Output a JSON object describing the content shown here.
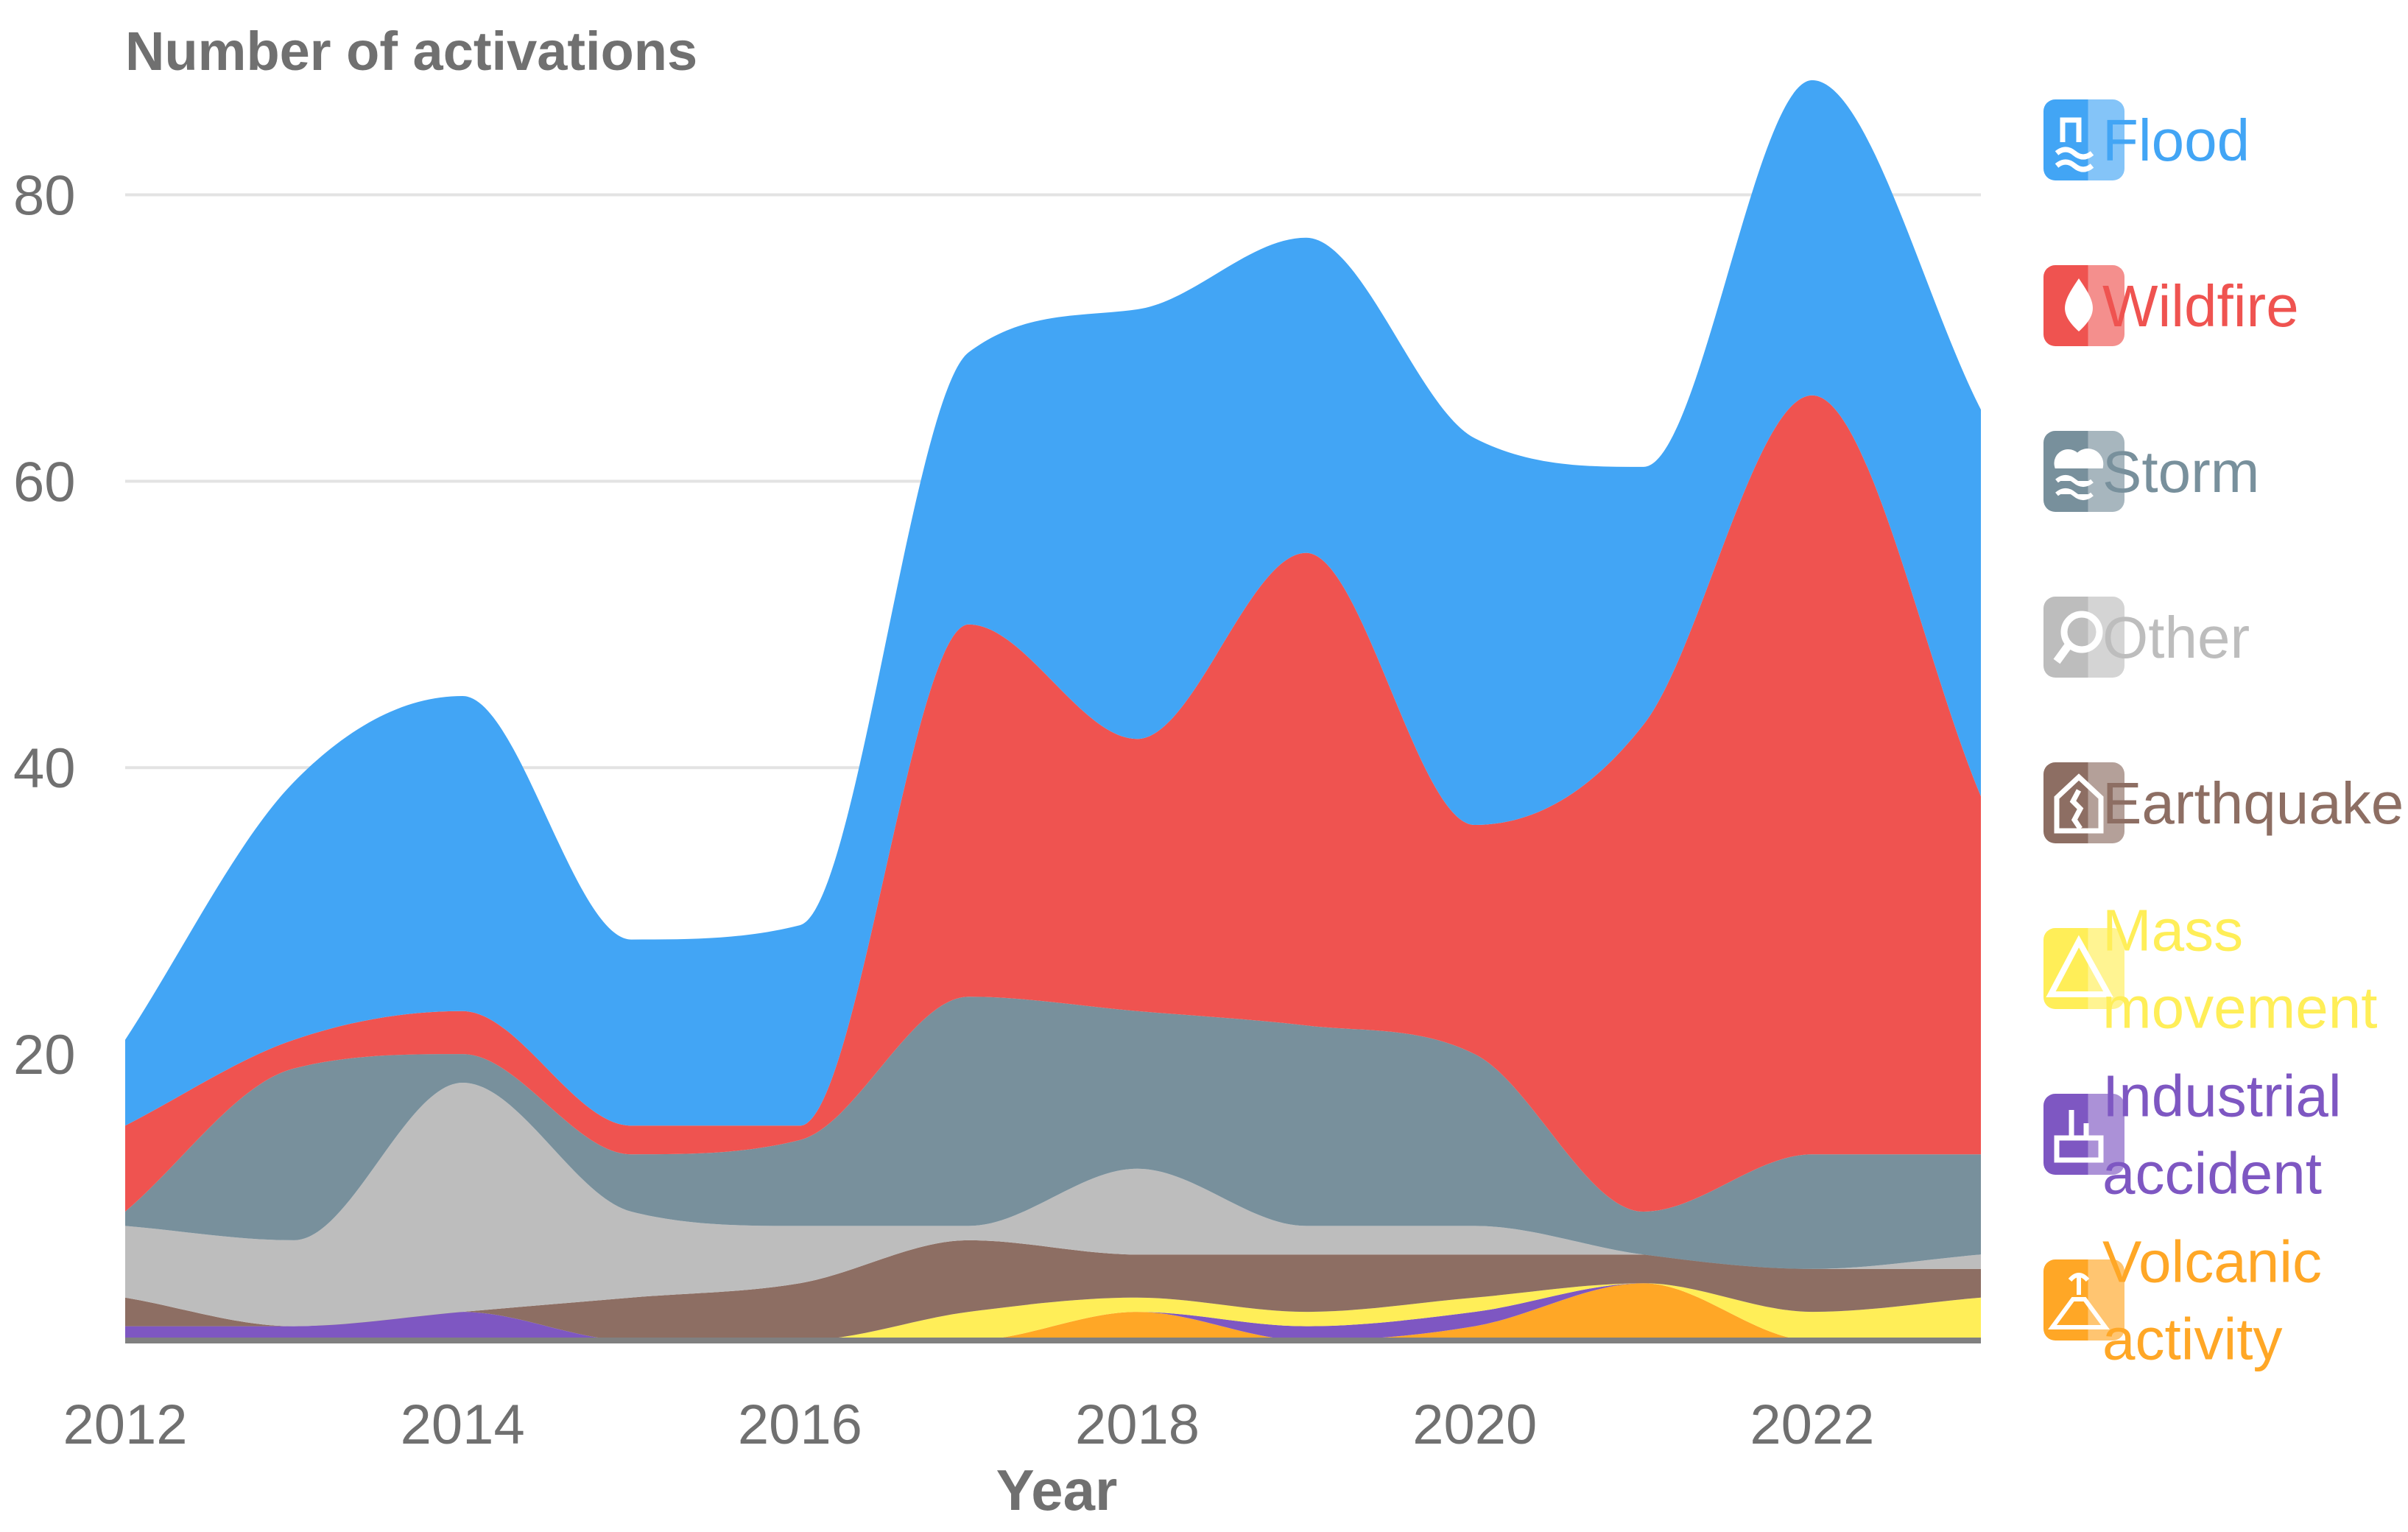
{
  "chart_data": {
    "type": "area",
    "stacked": true,
    "title": "Number of activations",
    "xlabel": "Year",
    "ylabel": "",
    "xlim": [
      2012,
      2023
    ],
    "ylim": [
      0,
      90
    ],
    "x_ticks": [
      2012,
      2014,
      2016,
      2018,
      2020,
      2022
    ],
    "y_ticks": [
      20,
      40,
      60,
      80
    ],
    "grid": true,
    "legend_position": "right",
    "x": [
      2012,
      2013,
      2014,
      2015,
      2016,
      2017,
      2018,
      2019,
      2020,
      2021,
      2022,
      2023
    ],
    "series": [
      {
        "name": "Volcanic activity",
        "color": "#FFA726",
        "icon": "volcano-icon",
        "values": [
          0,
          0,
          0,
          0,
          0,
          0,
          2,
          0,
          1,
          4,
          0,
          0
        ]
      },
      {
        "name": "Industrial accident",
        "color": "#7E57C2",
        "icon": "factory-icon",
        "values": [
          1,
          1,
          2,
          0,
          0,
          0,
          0,
          1,
          1,
          0,
          0,
          0
        ]
      },
      {
        "name": "Mass movement",
        "color": "#FFEE58",
        "icon": "landslide-icon",
        "values": [
          0,
          0,
          0,
          0,
          0,
          2,
          1,
          1,
          1,
          0,
          2,
          3
        ]
      },
      {
        "name": "Earthquake",
        "color": "#8D6E63",
        "icon": "earthquake-icon",
        "values": [
          2,
          0,
          0,
          3,
          4,
          5,
          3,
          4,
          3,
          2,
          3,
          2
        ]
      },
      {
        "name": "Other",
        "color": "#BDBDBD",
        "icon": "magnifier-icon",
        "values": [
          5,
          6,
          16,
          6,
          4,
          1,
          6,
          2,
          2,
          0,
          0,
          1
        ]
      },
      {
        "name": "Storm",
        "color": "#78909C",
        "icon": "storm-icon",
        "values": [
          1,
          12,
          2,
          4,
          6,
          16,
          11,
          14,
          12,
          3,
          8,
          7
        ]
      },
      {
        "name": "Wildfire",
        "color": "#EF5350",
        "icon": "fire-drop-icon",
        "values": [
          6,
          2,
          3,
          2,
          1,
          26,
          19,
          33,
          16,
          34,
          53,
          25
        ]
      },
      {
        "name": "Flood",
        "color": "#42A5F5",
        "icon": "flood-icon",
        "values": [
          6,
          18,
          22,
          13,
          14,
          19,
          30,
          22,
          27,
          18,
          22,
          27
        ]
      }
    ]
  },
  "legend": {
    "labels": [
      {
        "series": "Flood",
        "lines": [
          "Flood"
        ]
      },
      {
        "series": "Wildfire",
        "lines": [
          "Wildfire"
        ]
      },
      {
        "series": "Storm",
        "lines": [
          "Storm"
        ]
      },
      {
        "series": "Other",
        "lines": [
          "Other"
        ]
      },
      {
        "series": "Earthquake",
        "lines": [
          "Earthquake"
        ]
      },
      {
        "series": "Mass movement",
        "lines": [
          "Mass",
          "movement"
        ]
      },
      {
        "series": "Industrial accident",
        "lines": [
          "Industrial",
          "accident"
        ]
      },
      {
        "series": "Volcanic activity",
        "lines": [
          "Volcanic",
          "activity"
        ]
      }
    ]
  },
  "colors": {
    "grid": "#E3E3E3",
    "text": "#707070",
    "baseline": "#808080"
  }
}
